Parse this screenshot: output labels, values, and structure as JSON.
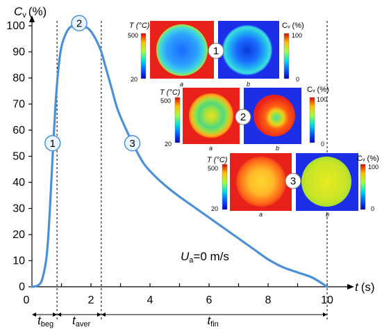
{
  "chart_data": {
    "type": "line",
    "x_axis": {
      "label_prefix": "t",
      "label_unit": "(s)",
      "ticks": [
        "0",
        "2",
        "4",
        "6",
        "8",
        "10"
      ],
      "range": [
        0,
        10.5
      ]
    },
    "y_axis": {
      "label_prefix": "C",
      "label_sub": "v",
      "label_unit": "(%)",
      "ticks": [
        "0",
        "10",
        "20",
        "30",
        "40",
        "50",
        "60",
        "70",
        "80",
        "90",
        "100"
      ],
      "range": [
        0,
        100
      ]
    },
    "series": [
      {
        "color": "#4a90d9",
        "x": [
          0,
          0.2,
          0.35,
          0.5,
          0.6,
          0.7,
          0.8,
          0.9,
          1.0,
          1.15,
          1.3,
          1.5,
          1.7,
          1.9,
          2.05,
          2.2,
          2.35,
          2.5,
          2.7,
          2.9,
          3.2,
          3.5,
          3.8,
          4.2,
          4.6,
          5.0,
          5.5,
          6.0,
          6.5,
          7.0,
          7.5,
          8.0,
          8.5,
          9.0,
          9.5,
          10.0
        ],
        "y": [
          0,
          0.5,
          3,
          12,
          28,
          50,
          70,
          84,
          92,
          97,
          99.5,
          100,
          100,
          99,
          97,
          94,
          90,
          84,
          76,
          68,
          60,
          53,
          47,
          42,
          38,
          34.5,
          30.5,
          26.5,
          22.5,
          18.5,
          14.5,
          10.5,
          7.5,
          5.5,
          3.5,
          0
        ]
      }
    ],
    "markers": [
      {
        "label": "1",
        "x": 0.7,
        "y": 55
      },
      {
        "label": "2",
        "x": 1.6,
        "y": 101
      },
      {
        "label": "3",
        "x": 3.4,
        "y": 55
      }
    ],
    "phase_lines_x": [
      0.85,
      2.35,
      10.0
    ],
    "phases": [
      {
        "sym": "t",
        "sub": "beg",
        "from": 0.2,
        "to": 0.85
      },
      {
        "sym": "t",
        "sub": "aver",
        "from": 0.85,
        "to": 2.35
      },
      {
        "sym": "t",
        "sub": "fin",
        "from": 2.35,
        "to": 10.0
      }
    ],
    "annotation": {
      "sym": "U",
      "sub": "a",
      "text": "=0 m/s"
    }
  },
  "insets": [
    {
      "marker": "1",
      "t_label": "T (°C)",
      "t_max": "500",
      "t_min": "20",
      "c_label": "Cᵥ (%)",
      "c_max": "100",
      "c_min": "0",
      "label_a": "a",
      "label_b": "b"
    },
    {
      "marker": "2",
      "t_label": "T (°C)",
      "t_max": "500",
      "t_min": "20",
      "c_label": "Cᵥ (%)",
      "c_max": "100",
      "c_min": "0",
      "label_a": "a",
      "label_b": "b"
    },
    {
      "marker": "3",
      "t_label": "T (°C)",
      "t_max": "500",
      "t_min": "20",
      "c_label": "Cᵥ (%)",
      "c_max": "100",
      "c_min": "0",
      "label_a": "a",
      "label_b": "b"
    }
  ],
  "colors": {
    "curve": "#4a90d9",
    "marker_fill": "#eaf4ff",
    "marker_stroke": "#4a90d9",
    "bg_red": "#e8211b",
    "bg_blue": "#1d2fe6"
  }
}
